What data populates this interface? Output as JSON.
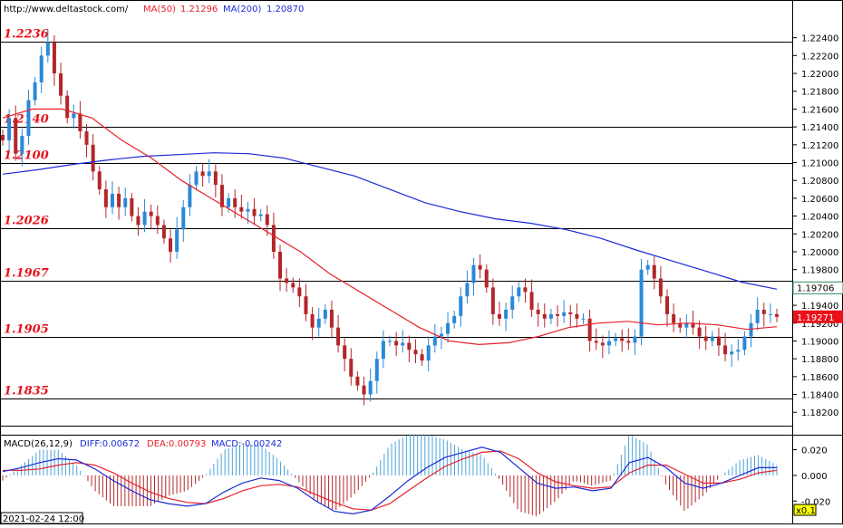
{
  "header": {
    "site": "http://www.deltastock.com/",
    "ma50_label": "MA(50)",
    "ma50_value": "1.21296",
    "ma200_label": "MA(200)",
    "ma200_value": "1.20870"
  },
  "macd_header": {
    "name": "MACD(26,12,9)",
    "diff_label": "DIFF:0.00672",
    "dea_label": "DEA:0.00793",
    "macd_label": "MACD:-0.00242"
  },
  "footer": {
    "date": "2021-02-24 12:00",
    "zoom": "x0.1"
  },
  "colors": {
    "bull": "#2a88d8",
    "bear": "#b3262a",
    "ma50": "#e8202a",
    "ma200": "#1a2bd6",
    "level_label": "#e8101a",
    "macd_pos": "#4aa3d8",
    "macd_neg": "#b3262a"
  },
  "chart_data": [
    {
      "type": "candlestick",
      "title": "",
      "ylim": [
        1.1805,
        1.2262
      ],
      "y_ticks": [
        "1.22400",
        "1.22200",
        "1.22000",
        "1.21800",
        "1.21600",
        "1.21400",
        "1.21200",
        "1.21000",
        "1.20800",
        "1.20600",
        "1.20400",
        "1.20200",
        "1.20000",
        "1.19800",
        "1.19600",
        "1.19400",
        "1.19200",
        "1.19000",
        "1.18800",
        "1.18600",
        "1.18400",
        "1.18200"
      ],
      "levels": [
        "1.2236",
        "1.2140",
        "1.2100",
        "1.2026",
        "1.1967",
        "1.1905",
        "1.1835"
      ],
      "price_tags": [
        {
          "text": "1.19706",
          "style": "boxed"
        },
        {
          "text": "1.19271",
          "style": "filled"
        }
      ],
      "close": [
        1.2125,
        1.215,
        1.211,
        1.213,
        1.217,
        1.219,
        1.222,
        1.2235,
        1.22,
        1.2175,
        1.215,
        1.2155,
        1.2135,
        1.212,
        1.209,
        1.207,
        1.205,
        1.2065,
        1.205,
        1.206,
        1.204,
        1.203,
        1.2045,
        1.204,
        1.203,
        1.2015,
        1.2,
        1.2025,
        1.205,
        1.2075,
        1.209,
        1.2085,
        1.209,
        1.2075,
        1.205,
        1.206,
        1.205,
        1.2045,
        1.2048,
        1.204,
        1.2042,
        1.203,
        1.2,
        1.197,
        1.1965,
        1.196,
        1.195,
        1.193,
        1.1915,
        1.1925,
        1.1935,
        1.1915,
        1.1895,
        1.188,
        1.186,
        1.185,
        1.184,
        1.1855,
        1.188,
        1.19,
        1.19,
        1.1895,
        1.1898,
        1.189,
        1.1885,
        1.1878,
        1.1895,
        1.1905,
        1.1908,
        1.192,
        1.1928,
        1.195,
        1.1965,
        1.1985,
        1.198,
        1.196,
        1.193,
        1.1925,
        1.1935,
        1.195,
        1.196,
        1.1955,
        1.1935,
        1.193,
        1.1925,
        1.193,
        1.1928,
        1.1932,
        1.193,
        1.1925,
        1.1925,
        1.19,
        1.1898,
        1.1895,
        1.19,
        1.1903,
        1.19,
        1.1898,
        1.1905,
        1.198,
        1.1985,
        1.197,
        1.195,
        1.193,
        1.192,
        1.1915,
        1.192,
        1.1915,
        1.1905,
        1.19,
        1.1905,
        1.1895,
        1.1885,
        1.1888,
        1.189,
        1.1905,
        1.192,
        1.1935,
        1.193,
        1.193,
        1.1927
      ],
      "ma50": [
        1.215,
        1.216,
        1.216,
        1.215,
        1.2125,
        1.2105,
        1.208,
        1.206,
        1.204,
        1.202,
        1.2,
        1.1975,
        1.1955,
        1.1935,
        1.1915,
        1.19,
        1.1896,
        1.1898,
        1.1905,
        1.1915,
        1.192,
        1.1922,
        1.1918,
        1.192,
        1.1918,
        1.1913,
        1.1916
      ],
      "ma200": [
        1.2087,
        1.2092,
        1.2098,
        1.2103,
        1.2107,
        1.2109,
        1.2111,
        1.211,
        1.2105,
        1.2095,
        1.2085,
        1.207,
        1.2055,
        1.2045,
        1.2037,
        1.2032,
        1.2025,
        1.2015,
        1.2002,
        1.199,
        1.1978,
        1.1966,
        1.1958
      ],
      "last_price": 1.19271
    },
    {
      "type": "bar",
      "title": "",
      "ylim": [
        -0.029,
        0.031
      ],
      "y_ticks": [
        "0.020",
        "0.000",
        "-0.020"
      ],
      "series": [
        {
          "name": "DIFF",
          "values": [
            0.003,
            0.006,
            0.01,
            0.013,
            0.012,
            0.005,
            -0.004,
            -0.012,
            -0.019,
            -0.022,
            -0.024,
            -0.022,
            -0.013,
            -0.006,
            -0.002,
            -0.004,
            -0.01,
            -0.02,
            -0.028,
            -0.03,
            -0.027,
            -0.016,
            -0.004,
            0.006,
            0.014,
            0.018,
            0.022,
            0.018,
            0.006,
            -0.006,
            -0.01,
            -0.009,
            -0.012,
            -0.01,
            0.01,
            0.014,
            0.006,
            -0.006,
            -0.01,
            -0.006,
            0.0,
            0.006,
            0.006
          ]
        },
        {
          "name": "DEA",
          "values": [
            0.004,
            0.004,
            0.005,
            0.008,
            0.01,
            0.008,
            0.002,
            -0.006,
            -0.013,
            -0.018,
            -0.021,
            -0.022,
            -0.018,
            -0.012,
            -0.008,
            -0.007,
            -0.009,
            -0.015,
            -0.021,
            -0.026,
            -0.027,
            -0.022,
            -0.012,
            -0.002,
            0.007,
            0.013,
            0.018,
            0.019,
            0.013,
            0.002,
            -0.005,
            -0.008,
            -0.01,
            -0.009,
            0.002,
            0.008,
            0.008,
            0.001,
            -0.006,
            -0.006,
            -0.003,
            0.002,
            0.004
          ]
        }
      ]
    }
  ]
}
